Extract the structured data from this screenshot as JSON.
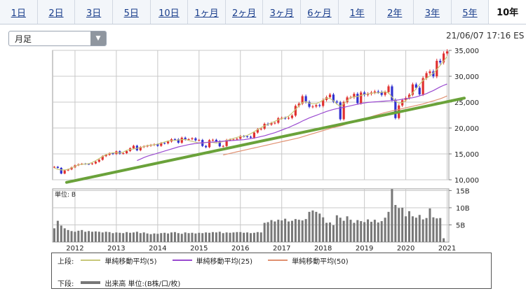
{
  "tabs": [
    "1日",
    "2日",
    "3日",
    "5日",
    "10日",
    "1ヶ月",
    "2ヶ月",
    "3ヶ月",
    "6ヶ月",
    "1年",
    "2年",
    "3年",
    "5年",
    "10年"
  ],
  "active_tab": "10年",
  "period_select": {
    "value": "月足"
  },
  "timestamp": "21/06/07 17:16 ES",
  "colors": {
    "up": "#e03030",
    "down": "#3030d0",
    "ma5": "#c8c87a",
    "ma25": "#9a4ad0",
    "ma50": "#e09070",
    "trend": "#6aa23a",
    "volume": "#777777",
    "grid": "#c8c8c8"
  },
  "legend": {
    "upper_label": "上段:",
    "lower_label": "下段:",
    "items": [
      {
        "name": "単純移動平均(5)",
        "color": "#c8c87a"
      },
      {
        "name": "単純移動平均(25)",
        "color": "#9a4ad0"
      },
      {
        "name": "単純移動平均(50)",
        "color": "#e09070"
      }
    ],
    "volume_item": {
      "name": "出来高 単位:(B株/口/枚)",
      "color": "#777777"
    }
  },
  "chart_data": [
    {
      "type": "candlestick",
      "x_ticks": [
        "2012",
        "2013",
        "2014",
        "2015",
        "2016",
        "2017",
        "2018",
        "2019",
        "2020",
        "2021"
      ],
      "y_ticks": [
        "35,000",
        "30,000",
        "25,000",
        "20,000",
        "15,000",
        "10,000"
      ],
      "ylim": [
        10000,
        35000
      ],
      "series": [
        {
          "values": [
            12500,
            12300,
            11200,
            11800,
            12000,
            12400,
            12800,
            13000,
            13100,
            13050,
            13020,
            13150,
            13480,
            13860,
            14560,
            14820,
            15120,
            14980,
            15500,
            15050,
            15130,
            15550,
            16080,
            16570,
            15700,
            16320,
            16460,
            16580,
            16720,
            16830,
            16560,
            17100,
            17040,
            17390,
            17830,
            17820,
            17160,
            18130,
            17780,
            17840,
            18010,
            17620,
            17690,
            16530,
            16290,
            17660,
            17720,
            17430,
            16460,
            16520,
            17690,
            17770,
            17790,
            17930,
            18430,
            18400,
            18310,
            18140,
            19120,
            19760,
            19860,
            20810,
            20660,
            20940,
            21010,
            21890,
            21950,
            21880,
            21950,
            22400,
            24270,
            24720,
            26150,
            25030,
            24100,
            24160,
            24420,
            24270,
            25420,
            25960,
            26460,
            25120,
            24940,
            21700,
            25000,
            25920,
            25930,
            26600,
            24810,
            26860,
            26400,
            26600,
            26860,
            27050,
            26920,
            26400,
            26920,
            28050,
            25410,
            21920,
            24350,
            25380,
            25810,
            26430,
            28430,
            27780,
            26500,
            29640,
            30600,
            30930,
            29980,
            32990,
            32660,
            34400,
            34800
          ]
        },
        {
          "name": "単純移動平均(5)",
          "values": [
            12300,
            12000,
            11900,
            11900,
            12000,
            12300,
            12600,
            12900,
            13000,
            13050,
            13100,
            13350,
            13700,
            14100,
            14500,
            14850,
            15100,
            15200,
            15250,
            15200,
            15350,
            15700,
            15850,
            15950,
            16100,
            16250,
            16400,
            16600,
            16700,
            16750,
            16900,
            17100,
            17300,
            17500,
            17600,
            17600,
            17700,
            17750,
            17800,
            17600,
            17400,
            17250,
            17100,
            17100,
            17200,
            17300,
            17200,
            17100,
            17200,
            17400,
            17600,
            17800,
            18000,
            18200,
            18350,
            18400,
            18600,
            18900,
            19300,
            19700,
            20100,
            20400,
            20700,
            21000,
            21300,
            21600,
            21800,
            22000,
            22300,
            22900,
            23600,
            24300,
            24900,
            25100,
            24800,
            24700,
            24700,
            25000,
            25400,
            25800,
            25700,
            25300,
            24600,
            24200,
            24700,
            25300,
            25900,
            26000,
            26100,
            26300,
            26500,
            26600,
            26700,
            26800,
            26800,
            26900,
            27000,
            26800,
            26000,
            25200,
            24800,
            24900,
            25300,
            25900,
            26800,
            27600,
            28400,
            29200,
            29600,
            30100,
            30600,
            31300,
            32100,
            32900,
            33800
          ]
        },
        {
          "name": "単純移動平均(25)",
          "values": [
            null,
            null,
            null,
            null,
            null,
            null,
            null,
            null,
            null,
            null,
            null,
            null,
            null,
            null,
            null,
            null,
            null,
            null,
            null,
            null,
            null,
            null,
            null,
            null,
            13700,
            14000,
            14300,
            14550,
            14750,
            14950,
            15150,
            15350,
            15550,
            15750,
            15950,
            16150,
            16350,
            16500,
            16650,
            16800,
            16900,
            17000,
            17100,
            17150,
            17200,
            17250,
            17300,
            17350,
            17400,
            17450,
            17500,
            17550,
            17600,
            17650,
            17700,
            17750,
            17850,
            17950,
            18050,
            18200,
            18350,
            18500,
            18700,
            18900,
            19100,
            19350,
            19600,
            19850,
            20100,
            20400,
            20700,
            21000,
            21350,
            21650,
            21950,
            22200,
            22450,
            22700,
            22950,
            23200,
            23400,
            23600,
            23750,
            23850,
            24000,
            24150,
            24300,
            24450,
            24600,
            24750,
            24850,
            24950,
            25000,
            25050,
            25100,
            25150,
            25200,
            25250,
            25300,
            25350,
            25450,
            25550,
            25650,
            25750,
            25850,
            26000,
            26200,
            26400,
            26650,
            26950,
            27250,
            27600,
            27950,
            28250,
            28500
          ]
        },
        {
          "name": "単純移動平均(50)",
          "values": [
            null,
            null,
            null,
            null,
            null,
            null,
            null,
            null,
            null,
            null,
            null,
            null,
            null,
            null,
            null,
            null,
            null,
            null,
            null,
            null,
            null,
            null,
            null,
            null,
            null,
            null,
            null,
            null,
            null,
            null,
            null,
            null,
            null,
            null,
            null,
            null,
            null,
            null,
            null,
            null,
            null,
            null,
            null,
            null,
            null,
            null,
            null,
            null,
            null,
            14800,
            14950,
            15100,
            15250,
            15400,
            15550,
            15700,
            15850,
            16000,
            16150,
            16300,
            16450,
            16600,
            16750,
            16900,
            17050,
            17200,
            17350,
            17500,
            17650,
            17800,
            17950,
            18100,
            18300,
            18500,
            18700,
            18900,
            19100,
            19300,
            19500,
            19700,
            19900,
            20100,
            20250,
            20400,
            20600,
            20800,
            21000,
            21200,
            21400,
            21600,
            21800,
            22000,
            22200,
            22400,
            22600,
            22800,
            23000,
            23150,
            23300,
            23450,
            23600,
            23750,
            23900,
            24050,
            24200,
            24350,
            24500,
            24650,
            24850,
            25050,
            25250,
            25450,
            25650,
            25900,
            26200
          ]
        },
        {
          "name": "trend",
          "values": [
            [
              0,
              9500
            ],
            [
              115,
              26400
            ]
          ]
        }
      ]
    },
    {
      "type": "bar",
      "y_ticks": [
        "15B",
        "10B",
        "5B"
      ],
      "ylim": [
        0,
        15.5
      ],
      "unit_label": "単位: B",
      "series": [
        {
          "name": "出来高",
          "values": [
            4.0,
            6.2,
            4.8,
            4.0,
            3.5,
            3.2,
            3.0,
            3.3,
            3.5,
            3.0,
            3.2,
            3.0,
            3.1,
            3.0,
            2.8,
            3.0,
            2.9,
            2.6,
            2.8,
            2.7,
            2.6,
            2.9,
            2.7,
            2.8,
            3.0,
            2.6,
            2.8,
            2.5,
            2.3,
            2.5,
            2.4,
            2.6,
            2.7,
            2.5,
            2.8,
            2.9,
            2.6,
            2.4,
            2.8,
            2.6,
            2.7,
            2.5,
            2.7,
            2.6,
            2.8,
            2.7,
            2.9,
            2.8,
            3.0,
            2.6,
            2.8,
            2.7,
            2.8,
            2.9,
            2.9,
            2.7,
            2.8,
            2.6,
            2.7,
            2.9,
            2.8,
            5.6,
            5.8,
            6.4,
            6.0,
            6.5,
            6.3,
            6.8,
            6.0,
            6.2,
            6.7,
            6.5,
            6.3,
            6.7,
            8.8,
            9.2,
            8.8,
            8.3,
            7.2,
            5.6,
            5.7,
            4.9,
            7.8,
            7.1,
            6.2,
            7.5,
            6.5,
            5.6,
            6.4,
            6.1,
            5.8,
            6.6,
            5.9,
            6.5,
            5.7,
            6.1,
            7.1,
            8.8,
            15.4,
            10.8,
            9.9,
            10.0,
            7.5,
            9.0,
            7.5,
            7.1,
            7.9,
            6.6,
            7.0,
            9.8,
            7.2,
            6.9,
            7.0,
            1.1
          ]
        }
      ]
    }
  ]
}
